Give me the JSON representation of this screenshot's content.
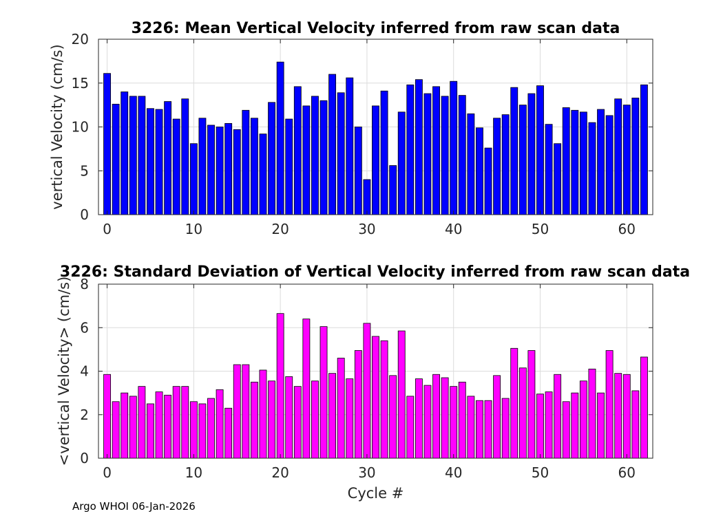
{
  "chart_data": [
    {
      "type": "bar",
      "title": "3226: Mean Vertical Velocity inferred from raw scan data",
      "xlabel": "",
      "ylabel": "vertical Velocity (cm/s)",
      "xlim": [
        -1,
        63
      ],
      "ylim": [
        0,
        20
      ],
      "xticks": [
        0,
        10,
        20,
        30,
        40,
        50,
        60
      ],
      "yticks": [
        0,
        5,
        10,
        15,
        20
      ],
      "grid": true,
      "color": "#0000ff",
      "x": [
        0,
        1,
        2,
        3,
        4,
        5,
        6,
        7,
        8,
        9,
        10,
        11,
        12,
        13,
        14,
        15,
        16,
        17,
        18,
        19,
        20,
        21,
        22,
        23,
        24,
        25,
        26,
        27,
        28,
        29,
        30,
        31,
        32,
        33,
        34,
        35,
        36,
        37,
        38,
        39,
        40,
        41,
        42,
        43,
        44,
        45,
        46,
        47,
        48,
        49,
        50,
        51,
        52,
        53,
        54,
        55,
        56,
        57,
        58,
        59,
        60,
        61,
        62
      ],
      "values": [
        16.1,
        12.6,
        14.0,
        13.5,
        13.5,
        12.1,
        12.0,
        12.9,
        10.9,
        13.2,
        8.1,
        11.0,
        10.2,
        10.0,
        10.4,
        9.7,
        11.9,
        11.0,
        9.2,
        12.8,
        17.4,
        10.9,
        14.6,
        12.4,
        13.5,
        13.0,
        16.0,
        13.9,
        15.6,
        10.0,
        4.0,
        12.4,
        14.1,
        5.6,
        11.7,
        14.8,
        15.4,
        13.8,
        14.6,
        13.5,
        15.2,
        13.6,
        11.5,
        9.9,
        7.6,
        11.0,
        11.4,
        14.5,
        12.5,
        13.8,
        14.7,
        10.3,
        8.1,
        12.2,
        11.9,
        11.7,
        10.5,
        12.0,
        11.3,
        13.2,
        12.5,
        13.3,
        14.8
      ]
    },
    {
      "type": "bar",
      "title": "3226: Standard Deviation of Vertical Velocity inferred from raw scan data",
      "xlabel": "Cycle #",
      "ylabel": "<vertical Velocity> (cm/s)",
      "xlim": [
        -1,
        63
      ],
      "ylim": [
        0,
        8
      ],
      "xticks": [
        0,
        10,
        20,
        30,
        40,
        50,
        60
      ],
      "yticks": [
        0,
        2,
        4,
        6,
        8
      ],
      "grid": true,
      "color": "#ff00ff",
      "x": [
        0,
        1,
        2,
        3,
        4,
        5,
        6,
        7,
        8,
        9,
        10,
        11,
        12,
        13,
        14,
        15,
        16,
        17,
        18,
        19,
        20,
        21,
        22,
        23,
        24,
        25,
        26,
        27,
        28,
        29,
        30,
        31,
        32,
        33,
        34,
        35,
        36,
        37,
        38,
        39,
        40,
        41,
        42,
        43,
        44,
        45,
        46,
        47,
        48,
        49,
        50,
        51,
        52,
        53,
        54,
        55,
        56,
        57,
        58,
        59,
        60,
        61,
        62
      ],
      "values": [
        3.85,
        2.6,
        3.0,
        2.85,
        3.3,
        2.5,
        3.05,
        2.9,
        3.3,
        3.3,
        2.6,
        2.5,
        2.75,
        3.15,
        2.3,
        4.3,
        4.3,
        3.5,
        4.05,
        3.55,
        6.65,
        3.75,
        3.3,
        6.4,
        3.55,
        6.05,
        3.9,
        4.6,
        3.65,
        4.95,
        6.2,
        5.6,
        5.4,
        3.8,
        5.85,
        2.85,
        3.65,
        3.35,
        3.85,
        3.7,
        3.3,
        3.5,
        2.85,
        2.65,
        2.65,
        3.8,
        2.75,
        5.05,
        4.15,
        4.95,
        2.95,
        3.05,
        3.85,
        2.6,
        3.0,
        3.55,
        4.1,
        3.0,
        4.95,
        3.9,
        3.85,
        3.1,
        4.65
      ]
    }
  ],
  "footer": "Argo WHOI 06-Jan-2026"
}
